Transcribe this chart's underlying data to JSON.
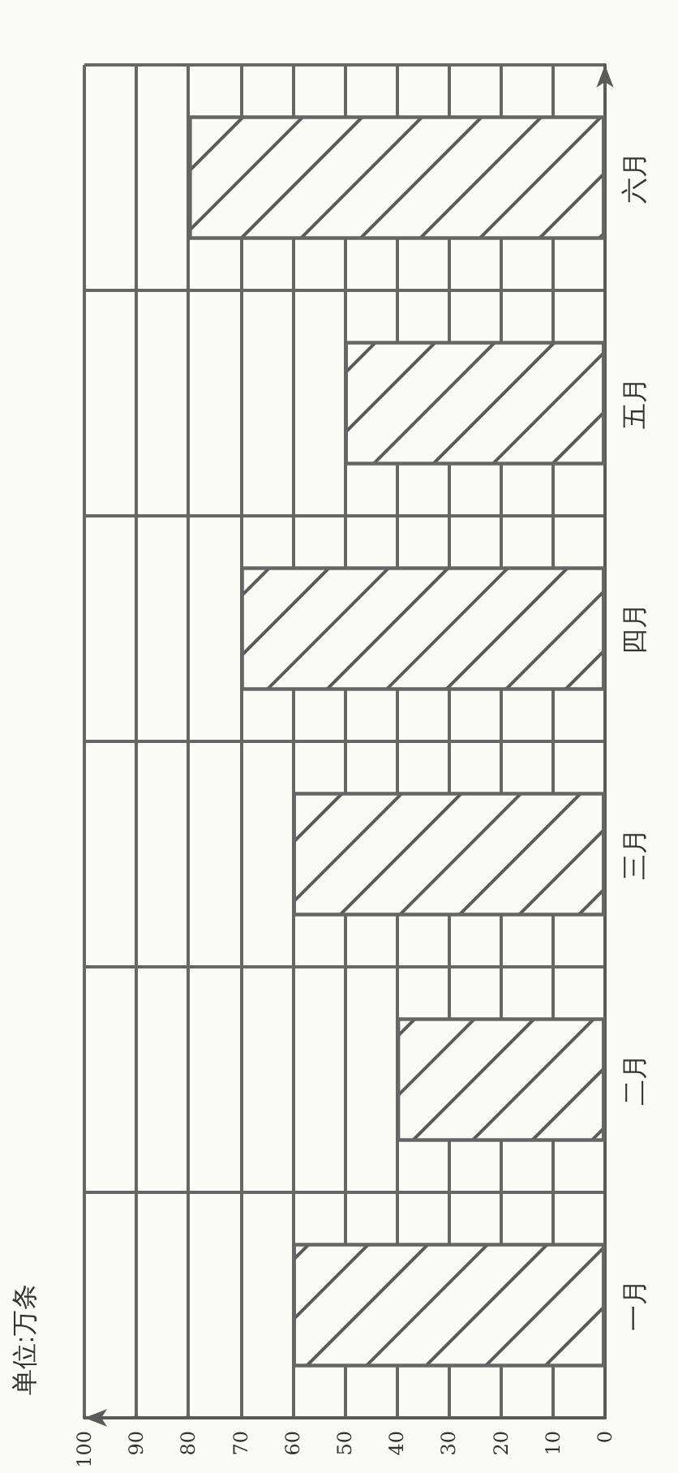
{
  "chart_data": {
    "type": "bar",
    "orientation": "horizontal",
    "annotations": [
      "单位:万条"
    ],
    "categories": [
      "六月",
      "五月",
      "四月",
      "三月",
      "二月",
      "一月"
    ],
    "values": [
      80,
      50,
      70,
      60,
      40,
      60
    ],
    "color": "#5a5a5a",
    "xlim": [
      100,
      0
    ],
    "xticks": [
      100,
      90,
      80,
      70,
      60,
      50,
      40,
      30,
      20,
      10,
      0
    ],
    "grid": true
  }
}
